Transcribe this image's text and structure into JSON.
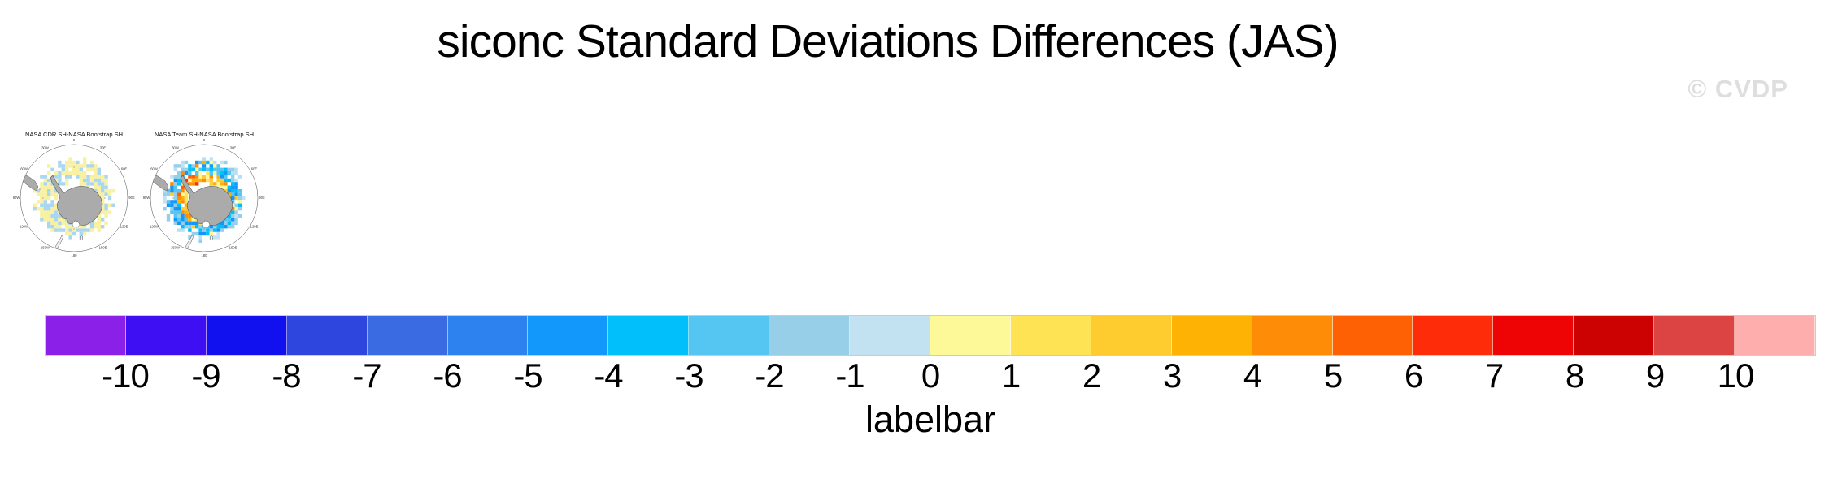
{
  "page": {
    "title": "siconc Standard Deviations Differences (JAS)",
    "watermark": "© CVDP"
  },
  "maps": {
    "items": [
      {
        "title": "NASA CDR SH-NASA Bootstrap SH",
        "seed": 7,
        "style": "mild"
      },
      {
        "title": "NASA Team SH-NASA Bootstrap SH",
        "seed": 13,
        "style": "strong"
      }
    ],
    "lon_labels": [
      "0",
      "30E",
      "60E",
      "90E",
      "120E",
      "150E",
      "180",
      "150W",
      "120W",
      "90W",
      "60W",
      "30W"
    ],
    "palettes": {
      "mild": {
        "yellow": "#F9F1A2",
        "blue": "#A9D7F2"
      },
      "strong": {
        "warm": [
          "#FEF998",
          "#FEE455",
          "#FECC2F",
          "#FEB204",
          "#FE8C06"
        ],
        "deep": [
          "#FE6103",
          "#FE2C08"
        ],
        "cool": [
          "#00BFFB",
          "#1297FB",
          "#55C5F2",
          "#98CFE8"
        ],
        "pale": [
          "#98CFE8",
          "#C2E2F2",
          "#B5E0F5"
        ]
      },
      "land": "#ABABAB",
      "coast": "#555555"
    }
  },
  "labelbar": {
    "title": "labelbar",
    "ticks": [
      "-10",
      "-9",
      "-8",
      "-7",
      "-6",
      "-5",
      "-4",
      "-3",
      "-2",
      "-1",
      "0",
      "1",
      "2",
      "3",
      "4",
      "5",
      "6",
      "7",
      "8",
      "9",
      "10"
    ],
    "colors": [
      "#8B21E8",
      "#3E0FF2",
      "#1011EE",
      "#2E46DD",
      "#3A6BE3",
      "#2E82F0",
      "#1297FB",
      "#00BFFB",
      "#55C5F2",
      "#98CFE8",
      "#C2E2F2",
      "#FEF998",
      "#FEE455",
      "#FECC2F",
      "#FEB204",
      "#FE8C06",
      "#FE6103",
      "#FE2C08",
      "#EE0405",
      "#CC0202",
      "#DC4444",
      "#FFAEAE"
    ]
  },
  "chart_data": {
    "type": "heatmap",
    "title": "siconc Standard Deviations Differences (JAS)",
    "panels": [
      {
        "title": "NASA CDR SH-NASA Bootstrap SH",
        "projection": "south-polar-stereographic",
        "summary": "weak differences: scattered pale-yellow (0 to 1) and light-blue (-1 to 0) cells ringing Antarctica"
      },
      {
        "title": "NASA Team SH-NASA Bootstrap SH",
        "projection": "south-polar-stereographic",
        "summary": "stronger differences: inner ring of positive values (1 to 6, orange) near coast, outer ring of negative values (-5 to -1, blue)"
      }
    ],
    "colorbar": {
      "label": "labelbar",
      "boundaries": [
        -10,
        -9,
        -8,
        -7,
        -6,
        -5,
        -4,
        -3,
        -2,
        -1,
        0,
        1,
        2,
        3,
        4,
        5,
        6,
        7,
        8,
        9,
        10
      ],
      "n_segments": 22,
      "colors": [
        "#8B21E8",
        "#3E0FF2",
        "#1011EE",
        "#2E46DD",
        "#3A6BE3",
        "#2E82F0",
        "#1297FB",
        "#00BFFB",
        "#55C5F2",
        "#98CFE8",
        "#C2E2F2",
        "#FEF998",
        "#FEE455",
        "#FECC2F",
        "#FEB204",
        "#FE8C06",
        "#FE6103",
        "#FE2C08",
        "#EE0405",
        "#CC0202",
        "#DC4444",
        "#FFAEAE"
      ]
    },
    "longitude_ticks": [
      "0",
      "30E",
      "60E",
      "90E",
      "120E",
      "150E",
      "180",
      "150W",
      "120W",
      "90W",
      "60W",
      "30W"
    ]
  }
}
